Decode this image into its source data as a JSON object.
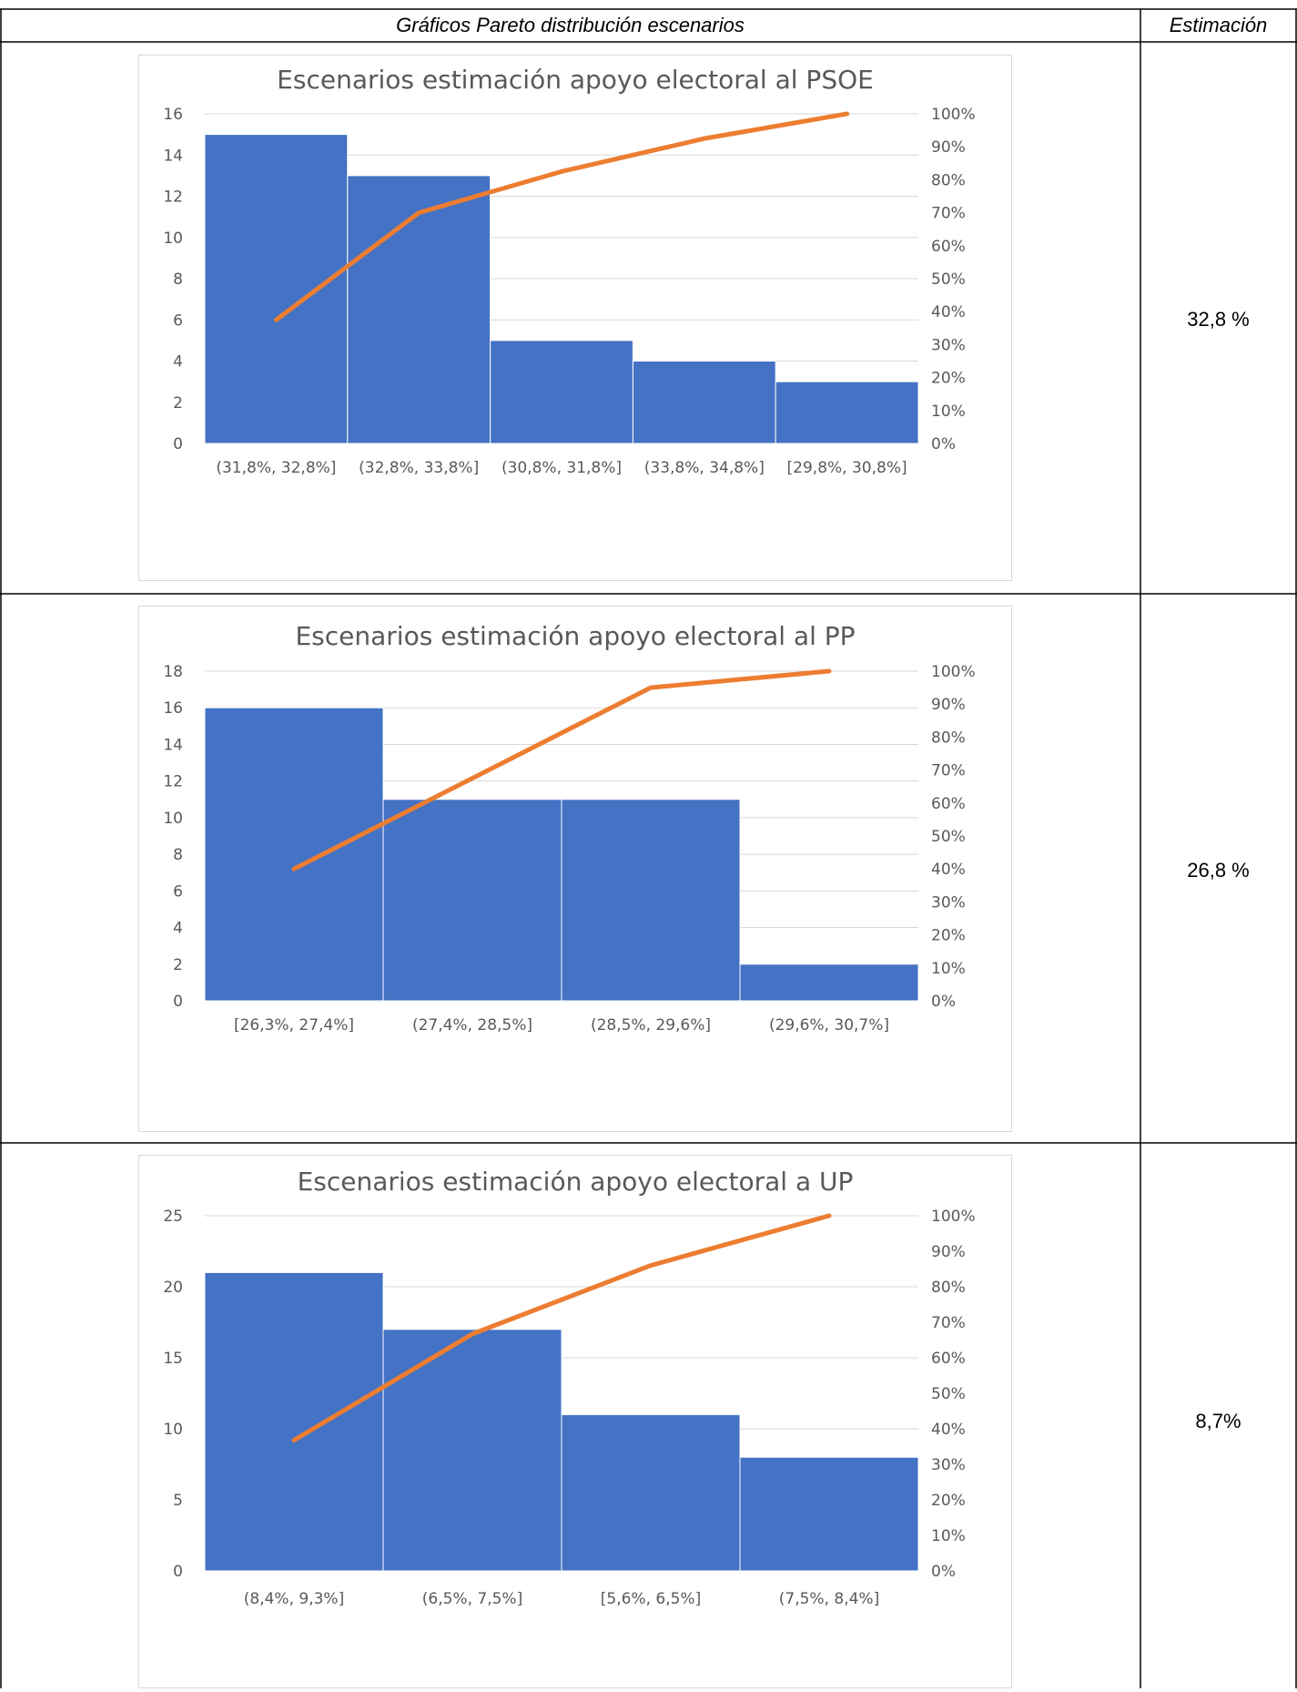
{
  "table": {
    "header_charts": "Gráficos Pareto distribución escenarios",
    "header_estimate": "Estimación"
  },
  "colors": {
    "bar": "#4472c4",
    "line": "#ed7d31",
    "grid": "#d9d9d9",
    "axis_text": "#595959",
    "title_text": "#595959"
  },
  "rows": [
    {
      "estimate": "32,8 %",
      "chart_data": {
        "type": "bar",
        "title": "Escenarios estimación apoyo electoral al PSOE",
        "categories": [
          "(31,8%, 32,8%]",
          "(32,8%, 33,8%]",
          "(30,8%, 31,8%]",
          "(33,8%, 34,8%]",
          "[29,8%, 30,8%]"
        ],
        "values": [
          15,
          13,
          5,
          4,
          3
        ],
        "cumulative_percent": [
          37.5,
          70,
          82.5,
          92.5,
          100
        ],
        "ylim": [
          0,
          16
        ],
        "yticks": [
          "0",
          "2",
          "4",
          "6",
          "8",
          "10",
          "12",
          "14",
          "16"
        ],
        "y2lim": [
          0,
          100
        ],
        "y2ticks": [
          "0%",
          "10%",
          "20%",
          "30%",
          "40%",
          "50%",
          "60%",
          "70%",
          "80%",
          "90%",
          "100%"
        ],
        "grid": true
      }
    },
    {
      "estimate": "26,8 %",
      "chart_data": {
        "type": "bar",
        "title": "Escenarios estimación apoyo electoral al PP",
        "categories": [
          "[26,3%, 27,4%]",
          "(27,4%, 28,5%]",
          "(28,5%, 29,6%]",
          "(29,6%, 30,7%]"
        ],
        "values": [
          16,
          11,
          11,
          2
        ],
        "cumulative_percent": [
          40,
          67.5,
          95,
          100
        ],
        "ylim": [
          0,
          18
        ],
        "yticks": [
          "0",
          "2",
          "4",
          "6",
          "8",
          "10",
          "12",
          "14",
          "16",
          "18"
        ],
        "y2lim": [
          0,
          100
        ],
        "y2ticks": [
          "0%",
          "10%",
          "20%",
          "30%",
          "40%",
          "50%",
          "60%",
          "70%",
          "80%",
          "90%",
          "100%"
        ],
        "grid": true
      }
    },
    {
      "estimate": "8,7%",
      "chart_data": {
        "type": "bar",
        "title": "Escenarios estimación apoyo electoral a UP",
        "categories": [
          "(8,4%, 9,3%]",
          "(6,5%, 7,5%]",
          "[5,6%, 6,5%]",
          "(7,5%, 8,4%]"
        ],
        "values": [
          21,
          17,
          11,
          8
        ],
        "cumulative_percent": [
          36.8,
          66.7,
          86,
          100
        ],
        "ylim": [
          0,
          25
        ],
        "yticks": [
          "0",
          "5",
          "10",
          "15",
          "20",
          "25"
        ],
        "y2lim": [
          0,
          100
        ],
        "y2ticks": [
          "0%",
          "10%",
          "20%",
          "30%",
          "40%",
          "50%",
          "60%",
          "70%",
          "80%",
          "90%",
          "100%"
        ],
        "grid": true
      }
    }
  ]
}
